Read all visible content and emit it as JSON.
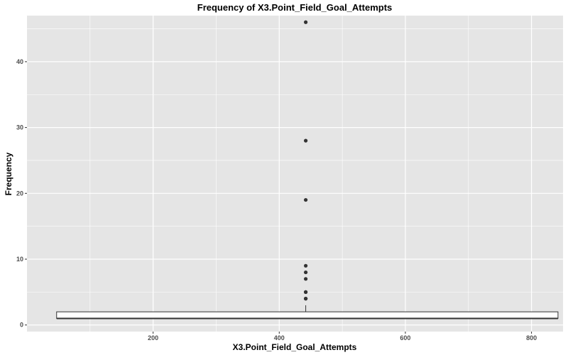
{
  "chart_data": {
    "type": "boxplot",
    "title": "Frequency of X3.Point_Field_Goal_Attempts",
    "xlabel": "X3.Point_Field_Goal_Attempts",
    "ylabel": "Frequency",
    "xlim": [
      0,
      850
    ],
    "ylim": [
      -1,
      47
    ],
    "x_ticks": [
      200,
      400,
      600,
      800
    ],
    "y_ticks": [
      0,
      10,
      20,
      30,
      40
    ],
    "grid": true,
    "legend": "none",
    "box": {
      "x_center": 442,
      "x_min": 47,
      "x_max": 842,
      "q1": 1,
      "median": 1,
      "q3": 2,
      "whisker_low": 1,
      "whisker_high": 3
    },
    "outliers": [
      46,
      28,
      19,
      9,
      8,
      7,
      5,
      5,
      4,
      4
    ],
    "colors": {
      "panel_background": "#e5e5e5",
      "grid": "#ffffff",
      "box_fill": "#ffffff",
      "box_line": "#333333",
      "outlier": "#333333"
    }
  }
}
